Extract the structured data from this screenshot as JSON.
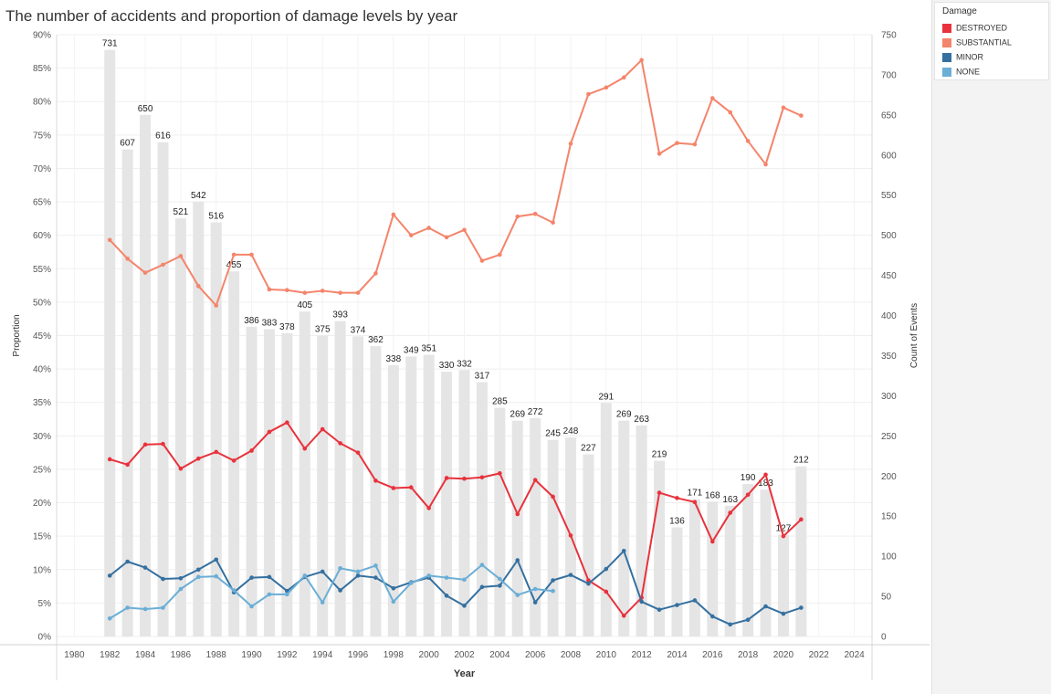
{
  "title": "The number of accidents and proportion of damage levels by year",
  "legend": {
    "title": "Damage",
    "items": [
      {
        "label": "DESTROYED",
        "color": "#e8323c"
      },
      {
        "label": "SUBSTANTIAL",
        "color": "#f4846b"
      },
      {
        "label": "MINOR",
        "color": "#3470a0"
      },
      {
        "label": "NONE",
        "color": "#6baed6"
      }
    ]
  },
  "chart_data": {
    "type": "bar",
    "xlabel": "Year",
    "ylabel": "Proportion",
    "y2label": "Count of Events",
    "xlim": [
      1979,
      2025
    ],
    "xticks": [
      1980,
      1982,
      1984,
      1986,
      1988,
      1990,
      1992,
      1994,
      1996,
      1998,
      2000,
      2002,
      2004,
      2006,
      2008,
      2010,
      2012,
      2014,
      2016,
      2018,
      2020,
      2022,
      2024
    ],
    "ylim": [
      0,
      0.9
    ],
    "yticks": [
      "0%",
      "5%",
      "10%",
      "15%",
      "20%",
      "25%",
      "30%",
      "35%",
      "40%",
      "45%",
      "50%",
      "55%",
      "60%",
      "65%",
      "70%",
      "75%",
      "80%",
      "85%",
      "90%"
    ],
    "y2lim": [
      0,
      750
    ],
    "y2ticks": [
      0,
      50,
      100,
      150,
      200,
      250,
      300,
      350,
      400,
      450,
      500,
      550,
      600,
      650,
      700,
      750
    ],
    "grid": true,
    "legend_position": "right",
    "bars": {
      "name": "Count of Events",
      "color": "#e5e5e5",
      "x": [
        1982,
        1983,
        1984,
        1985,
        1986,
        1987,
        1988,
        1989,
        1990,
        1991,
        1992,
        1993,
        1994,
        1995,
        1996,
        1997,
        1998,
        1999,
        2000,
        2001,
        2002,
        2003,
        2004,
        2005,
        2006,
        2007,
        2008,
        2009,
        2010,
        2011,
        2012,
        2013,
        2014,
        2015,
        2016,
        2017,
        2018,
        2019,
        2020,
        2021
      ],
      "values": [
        731,
        607,
        650,
        616,
        521,
        542,
        516,
        455,
        386,
        383,
        378,
        405,
        375,
        393,
        374,
        362,
        338,
        349,
        351,
        330,
        332,
        317,
        285,
        269,
        272,
        245,
        248,
        227,
        291,
        269,
        263,
        219,
        136,
        171,
        168,
        163,
        190,
        183,
        127,
        212
      ],
      "labels": [
        "731",
        "607",
        "650",
        "616",
        "521",
        "542",
        "516",
        "455",
        "386",
        "383",
        "378",
        "405",
        "375",
        "393",
        "374",
        "362",
        "338",
        "349",
        "351",
        "330",
        "332",
        "317",
        "285",
        "269",
        "272",
        "245",
        "248",
        "227",
        "291",
        "269",
        "263",
        "219",
        "136",
        "171",
        "168",
        "163",
        "190",
        "183",
        "127",
        "212"
      ]
    },
    "series": [
      {
        "name": "SUBSTANTIAL",
        "color": "#f4846b",
        "x": [
          1982,
          1983,
          1984,
          1985,
          1986,
          1987,
          1988,
          1989,
          1990,
          1991,
          1992,
          1993,
          1994,
          1995,
          1996,
          1997,
          1998,
          1999,
          2000,
          2001,
          2002,
          2003,
          2004,
          2005,
          2006,
          2007,
          2008,
          2009,
          2010,
          2011,
          2012,
          2013,
          2014,
          2015,
          2016,
          2017,
          2018,
          2019,
          2020,
          2021
        ],
        "values": [
          0.593,
          0.565,
          0.544,
          0.556,
          0.569,
          0.524,
          0.495,
          0.571,
          0.571,
          0.519,
          0.518,
          0.514,
          0.517,
          0.514,
          0.514,
          0.543,
          0.631,
          0.6,
          0.611,
          0.597,
          0.608,
          0.562,
          0.571,
          0.628,
          0.632,
          0.619,
          0.737,
          0.811,
          0.821,
          0.836,
          0.862,
          0.722,
          0.738,
          0.736,
          0.805,
          0.784,
          0.741,
          0.706,
          0.791,
          0.779
        ]
      },
      {
        "name": "DESTROYED",
        "color": "#e8323c",
        "x": [
          1982,
          1983,
          1984,
          1985,
          1986,
          1987,
          1988,
          1989,
          1990,
          1991,
          1992,
          1993,
          1994,
          1995,
          1996,
          1997,
          1998,
          1999,
          2000,
          2001,
          2002,
          2003,
          2004,
          2005,
          2006,
          2007,
          2008,
          2009,
          2010,
          2011,
          2012,
          2013,
          2014,
          2015,
          2016,
          2017,
          2018,
          2019,
          2020,
          2021
        ],
        "values": [
          0.265,
          0.257,
          0.287,
          0.288,
          0.251,
          0.266,
          0.276,
          0.263,
          0.278,
          0.306,
          0.32,
          0.281,
          0.31,
          0.289,
          0.275,
          0.233,
          0.222,
          0.223,
          0.192,
          0.237,
          0.236,
          0.238,
          0.244,
          0.183,
          0.234,
          0.209,
          0.151,
          0.084,
          0.067,
          0.031,
          0.058,
          0.215,
          0.207,
          0.201,
          0.142,
          0.185,
          0.212,
          0.242,
          0.15,
          0.175
        ]
      },
      {
        "name": "MINOR",
        "color": "#3470a0",
        "x": [
          1982,
          1983,
          1984,
          1985,
          1986,
          1987,
          1988,
          1989,
          1990,
          1991,
          1992,
          1993,
          1994,
          1995,
          1996,
          1997,
          1998,
          1999,
          2000,
          2001,
          2002,
          2003,
          2004,
          2005,
          2006,
          2007,
          2008,
          2009,
          2010,
          2011,
          2012,
          2013,
          2014,
          2015,
          2016,
          2017,
          2018,
          2019,
          2020,
          2021
        ],
        "values": [
          0.091,
          0.112,
          0.103,
          0.086,
          0.087,
          0.1,
          0.115,
          0.066,
          0.088,
          0.089,
          0.068,
          0.089,
          0.097,
          0.069,
          0.091,
          0.088,
          0.072,
          0.081,
          0.088,
          0.061,
          0.046,
          0.074,
          0.076,
          0.114,
          0.051,
          0.084,
          0.092,
          0.079,
          0.101,
          0.128,
          0.052,
          0.04,
          0.047,
          0.054,
          0.03,
          0.018,
          0.025,
          0.045,
          0.034,
          0.043
        ]
      },
      {
        "name": "NONE",
        "color": "#6baed6",
        "x": [
          1982,
          1983,
          1984,
          1985,
          1986,
          1987,
          1988,
          1989,
          1990,
          1991,
          1992,
          1993,
          1994,
          1995,
          1996,
          1997,
          1998,
          1999,
          2000,
          2001,
          2002,
          2003,
          2004,
          2005,
          2006,
          2007
        ],
        "values": [
          0.027,
          0.043,
          0.041,
          0.043,
          0.071,
          0.089,
          0.09,
          0.069,
          0.045,
          0.063,
          0.063,
          0.091,
          0.051,
          0.102,
          0.097,
          0.106,
          0.052,
          0.08,
          0.091,
          0.088,
          0.085,
          0.107,
          0.086,
          0.062,
          0.071,
          0.068
        ]
      }
    ]
  }
}
